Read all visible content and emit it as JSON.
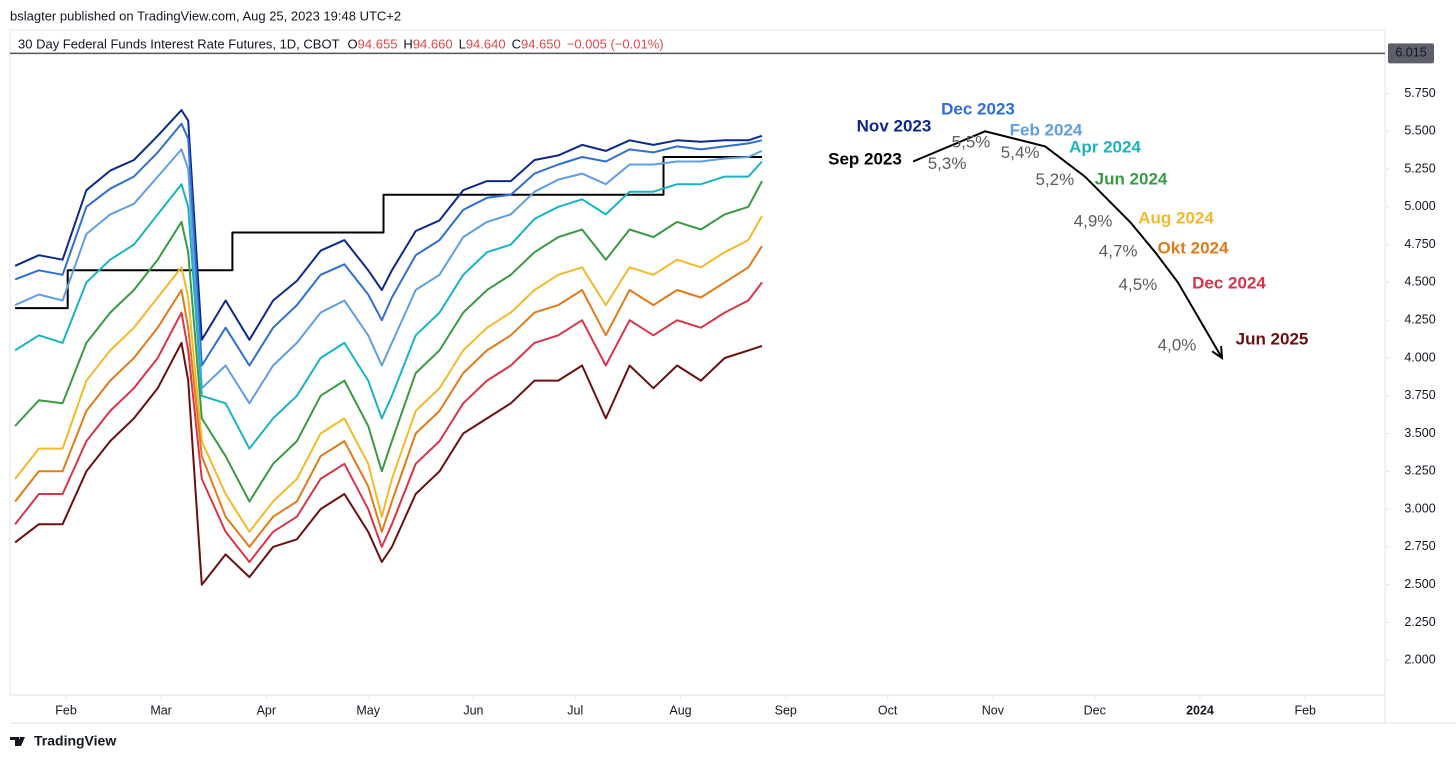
{
  "header": {
    "byline": "bslagter published on TradingView.com, Aug 25, 2023 19:48 UTC+2",
    "symbol": "30 Day Federal Funds Interest Rate Futures, 1D, CBOT",
    "ohlc": [
      {
        "key": "O",
        "value": "94.655"
      },
      {
        "key": "H",
        "value": "94.660"
      },
      {
        "key": "L",
        "value": "94.640"
      },
      {
        "key": "C",
        "value": "94.650"
      }
    ],
    "change": "−0.005 (−0.01%)"
  },
  "chart_data": {
    "type": "line",
    "x": [
      16,
      23,
      30,
      37,
      44,
      51,
      58,
      65,
      67,
      71,
      78,
      85,
      92,
      99,
      106,
      113,
      120,
      124,
      127,
      134,
      141,
      148,
      155,
      162,
      169,
      176,
      183,
      190,
      197,
      204,
      211,
      218,
      225,
      232,
      236
    ],
    "xlim": [
      14.5,
      419.5
    ],
    "xticks": [
      {
        "value": 31,
        "label": "Feb"
      },
      {
        "value": 59,
        "label": "Mar"
      },
      {
        "value": 90,
        "label": "Apr"
      },
      {
        "value": 120,
        "label": "May"
      },
      {
        "value": 151,
        "label": "Jun"
      },
      {
        "value": 181,
        "label": "Jul"
      },
      {
        "value": 212,
        "label": "Aug"
      },
      {
        "value": 243,
        "label": "Sep"
      },
      {
        "value": 273,
        "label": "Oct"
      },
      {
        "value": 304,
        "label": "Nov"
      },
      {
        "value": 334,
        "label": "Dec"
      },
      {
        "value": 365,
        "label": "2024"
      },
      {
        "value": 396,
        "label": "Feb"
      }
    ],
    "ylim": [
      1.77,
      6.17
    ],
    "yticks": [
      {
        "value": 2.0,
        "label": "2.000"
      },
      {
        "value": 2.25,
        "label": "2.250"
      },
      {
        "value": 2.5,
        "label": "2.500"
      },
      {
        "value": 2.75,
        "label": "2.750"
      },
      {
        "value": 3.0,
        "label": "3.000"
      },
      {
        "value": 3.25,
        "label": "3.250"
      },
      {
        "value": 3.5,
        "label": "3.500"
      },
      {
        "value": 3.75,
        "label": "3.750"
      },
      {
        "value": 4.0,
        "label": "4.000"
      },
      {
        "value": 4.25,
        "label": "4.250"
      },
      {
        "value": 4.5,
        "label": "4.500"
      },
      {
        "value": 4.75,
        "label": "4.750"
      },
      {
        "value": 5.0,
        "label": "5.000"
      },
      {
        "value": 5.25,
        "label": "5.250"
      },
      {
        "value": 5.5,
        "label": "5.500"
      },
      {
        "value": 5.75,
        "label": "5.750"
      }
    ],
    "price_line": 6.015,
    "series": [
      {
        "name": "Sep 2023",
        "color": "#000000",
        "x": [
          16,
          31.5,
          31.5,
          80,
          80,
          124.5,
          124.5,
          207,
          207,
          236
        ],
        "values": [
          4.33,
          4.33,
          4.58,
          4.58,
          4.83,
          4.83,
          5.08,
          5.08,
          5.33,
          5.33
        ]
      },
      {
        "name": "Nov 2023",
        "color": "#0d2a8a",
        "values": [
          4.61,
          4.68,
          4.65,
          5.11,
          5.24,
          5.31,
          5.47,
          5.64,
          5.57,
          4.12,
          4.38,
          4.12,
          4.38,
          4.51,
          4.71,
          4.78,
          4.58,
          4.45,
          4.58,
          4.84,
          4.91,
          5.11,
          5.17,
          5.17,
          5.31,
          5.34,
          5.41,
          5.37,
          5.44,
          5.41,
          5.44,
          5.43,
          5.44,
          5.44,
          5.47
        ]
      },
      {
        "name": "Dec 2023",
        "color": "#2f6fd0",
        "values": [
          4.52,
          4.58,
          4.55,
          5.0,
          5.12,
          5.2,
          5.36,
          5.55,
          5.45,
          3.95,
          4.2,
          3.95,
          4.2,
          4.35,
          4.55,
          4.62,
          4.42,
          4.25,
          4.4,
          4.68,
          4.78,
          4.98,
          5.06,
          5.08,
          5.22,
          5.28,
          5.33,
          5.3,
          5.38,
          5.36,
          5.4,
          5.38,
          5.4,
          5.42,
          5.44
        ]
      },
      {
        "name": "Feb 2024",
        "color": "#5f9ee0",
        "values": [
          4.35,
          4.42,
          4.38,
          4.82,
          4.95,
          5.02,
          5.2,
          5.38,
          5.25,
          3.8,
          3.95,
          3.7,
          3.95,
          4.1,
          4.3,
          4.38,
          4.15,
          3.95,
          4.1,
          4.45,
          4.55,
          4.8,
          4.9,
          4.95,
          5.1,
          5.18,
          5.22,
          5.15,
          5.28,
          5.28,
          5.3,
          5.3,
          5.32,
          5.33,
          5.37
        ]
      },
      {
        "name": "Apr 2024",
        "color": "#1ab3c4",
        "values": [
          4.05,
          4.15,
          4.1,
          4.5,
          4.65,
          4.75,
          4.95,
          5.15,
          5.0,
          3.75,
          3.7,
          3.4,
          3.6,
          3.75,
          4.0,
          4.1,
          3.85,
          3.6,
          3.75,
          4.15,
          4.3,
          4.55,
          4.7,
          4.75,
          4.92,
          5.0,
          5.05,
          4.95,
          5.1,
          5.1,
          5.15,
          5.15,
          5.2,
          5.2,
          5.3
        ]
      },
      {
        "name": "Jun 2024",
        "color": "#3a9a43",
        "values": [
          3.55,
          3.72,
          3.7,
          4.1,
          4.3,
          4.45,
          4.65,
          4.9,
          4.7,
          3.6,
          3.35,
          3.05,
          3.3,
          3.45,
          3.75,
          3.85,
          3.55,
          3.25,
          3.45,
          3.9,
          4.05,
          4.3,
          4.45,
          4.55,
          4.7,
          4.8,
          4.85,
          4.65,
          4.85,
          4.8,
          4.9,
          4.85,
          4.95,
          5.0,
          5.17
        ]
      },
      {
        "name": "Aug 2024",
        "color": "#f2b92b",
        "values": [
          3.2,
          3.4,
          3.4,
          3.85,
          4.05,
          4.2,
          4.4,
          4.6,
          4.4,
          3.45,
          3.1,
          2.85,
          3.05,
          3.2,
          3.5,
          3.6,
          3.3,
          2.95,
          3.2,
          3.65,
          3.8,
          4.05,
          4.2,
          4.3,
          4.45,
          4.55,
          4.6,
          4.35,
          4.6,
          4.55,
          4.65,
          4.6,
          4.7,
          4.78,
          4.94
        ]
      },
      {
        "name": "Okt 2024",
        "color": "#e07b1a",
        "values": [
          3.05,
          3.25,
          3.25,
          3.65,
          3.85,
          4.0,
          4.2,
          4.45,
          4.2,
          3.35,
          2.95,
          2.75,
          2.95,
          3.05,
          3.35,
          3.45,
          3.15,
          2.85,
          3.05,
          3.5,
          3.65,
          3.9,
          4.05,
          4.15,
          4.3,
          4.35,
          4.45,
          4.15,
          4.45,
          4.35,
          4.45,
          4.4,
          4.5,
          4.6,
          4.74
        ]
      },
      {
        "name": "Dec 2024",
        "color": "#d8344a",
        "values": [
          2.9,
          3.1,
          3.1,
          3.45,
          3.65,
          3.8,
          4.0,
          4.3,
          4.05,
          3.2,
          2.85,
          2.65,
          2.85,
          2.95,
          3.2,
          3.3,
          3.0,
          2.75,
          2.9,
          3.3,
          3.45,
          3.7,
          3.85,
          3.95,
          4.1,
          4.15,
          4.25,
          3.95,
          4.25,
          4.15,
          4.25,
          4.2,
          4.3,
          4.38,
          4.5
        ]
      },
      {
        "name": "Jun 2025",
        "color": "#6b1010",
        "values": [
          2.78,
          2.9,
          2.9,
          3.25,
          3.45,
          3.6,
          3.8,
          4.1,
          3.85,
          2.5,
          2.7,
          2.55,
          2.75,
          2.8,
          3.0,
          3.1,
          2.85,
          2.65,
          2.75,
          3.1,
          3.25,
          3.5,
          3.6,
          3.7,
          3.85,
          3.85,
          3.95,
          3.6,
          3.95,
          3.8,
          3.95,
          3.85,
          4.0,
          4.05,
          4.08
        ]
      }
    ],
    "projection": {
      "color": "#000000",
      "x": [
        280.5,
        301.7,
        319.4,
        331.1,
        344.4,
        351.8,
        358.5,
        371.5
      ],
      "values": [
        5.3,
        5.5,
        5.4,
        5.2,
        4.9,
        4.7,
        4.5,
        4.0
      ],
      "value_labels": [
        "5,3%",
        "5,5%",
        "5,4%",
        "5,2%",
        "4,9%",
        "4,7%",
        "4,5%",
        "4,0%"
      ]
    }
  },
  "footer": {
    "brand": "TradingView"
  }
}
